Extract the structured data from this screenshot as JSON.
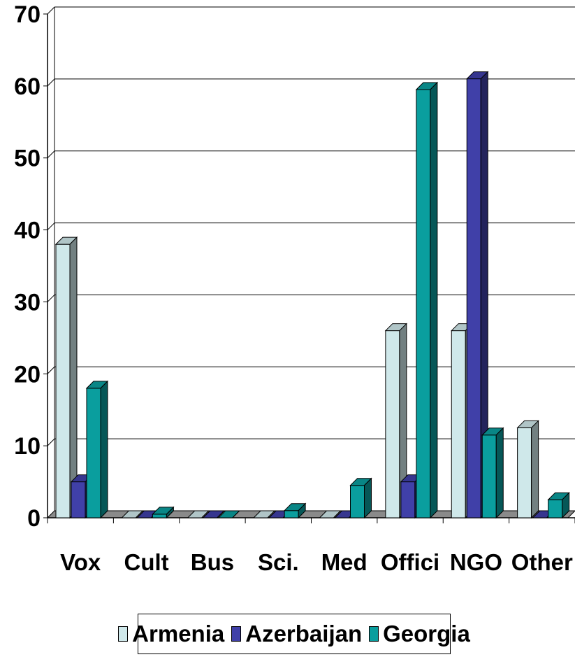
{
  "chart_data": {
    "type": "bar",
    "categories": [
      "Vox",
      "Cult",
      "Bus",
      "Sci.",
      "Med",
      "Offici",
      "NGO",
      "Other"
    ],
    "series": [
      {
        "name": "Armenia",
        "color": "#cfe8ea",
        "values": [
          38,
          0,
          0,
          0,
          0,
          26,
          26,
          12.5
        ]
      },
      {
        "name": "Azerbaijan",
        "color": "#4040a8",
        "values": [
          5,
          0,
          0,
          0,
          0,
          5,
          61,
          0
        ]
      },
      {
        "name": "Georgia",
        "color": "#0a9e9e",
        "values": [
          18,
          0.5,
          0,
          1,
          4.5,
          59.5,
          11.5,
          2.5
        ]
      }
    ],
    "ylim": [
      0,
      70
    ],
    "yticks": [
      "0",
      "10",
      "20",
      "30",
      "40",
      "50",
      "60",
      "70"
    ],
    "grid": true,
    "legend_position": "bottom"
  }
}
